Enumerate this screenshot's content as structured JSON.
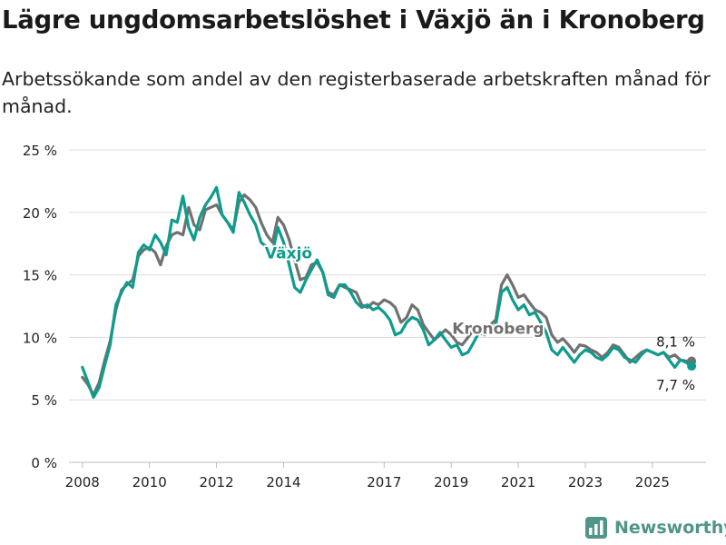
{
  "title": "Lägre ungdomsarbetslöshet i Växjö än i Kronoberg",
  "subtitle": "Arbetssökande som andel av den registerbaserade arbetskraften månad för månad.",
  "brand": "Newsworthy",
  "colors": {
    "vaxjo": "#0d9c8d",
    "kronoberg": "#717171",
    "grid": "#dcdcdc",
    "brand": "#4f9588"
  },
  "chart_data": {
    "type": "line",
    "title": "Lägre ungdomsarbetslöshet i Växjö än i Kronoberg",
    "xlabel": "",
    "ylabel": "",
    "xlim": [
      2007.6,
      2026.6
    ],
    "ylim": [
      0,
      25
    ],
    "y_ticks": [
      0,
      5,
      10,
      15,
      20,
      25
    ],
    "y_tick_labels": [
      "0 %",
      "5 %",
      "10 %",
      "15 %",
      "20 %",
      "25 %"
    ],
    "x_ticks": [
      2008,
      2010,
      2012,
      2014,
      2017,
      2019,
      2021,
      2023,
      2025
    ],
    "x_tick_labels": [
      "2008",
      "2010",
      "2012",
      "2014",
      "2017",
      "2019",
      "2021",
      "2023",
      "2025"
    ],
    "grid": true,
    "series": [
      {
        "name": "Kronoberg",
        "color": "#717171",
        "label_year": 2020.4,
        "label_value": 10.3,
        "end_label": "8,1 %",
        "x": [
          2008.0,
          2008.17,
          2008.33,
          2008.5,
          2008.67,
          2008.83,
          2009.0,
          2009.17,
          2009.33,
          2009.5,
          2009.67,
          2009.83,
          2010.0,
          2010.17,
          2010.33,
          2010.5,
          2010.67,
          2010.83,
          2011.0,
          2011.17,
          2011.33,
          2011.5,
          2011.67,
          2011.83,
          2012.0,
          2012.17,
          2012.33,
          2012.5,
          2012.67,
          2012.83,
          2013.0,
          2013.17,
          2013.33,
          2013.5,
          2013.67,
          2013.83,
          2014.0,
          2014.17,
          2014.33,
          2014.5,
          2014.67,
          2014.83,
          2015.0,
          2015.17,
          2015.33,
          2015.5,
          2015.67,
          2015.83,
          2016.0,
          2016.17,
          2016.33,
          2016.5,
          2016.67,
          2016.83,
          2017.0,
          2017.17,
          2017.33,
          2017.5,
          2017.67,
          2017.83,
          2018.0,
          2018.17,
          2018.33,
          2018.5,
          2018.67,
          2018.83,
          2019.0,
          2019.17,
          2019.33,
          2019.5,
          2019.67,
          2019.83,
          2020.0,
          2020.17,
          2020.33,
          2020.5,
          2020.67,
          2020.83,
          2021.0,
          2021.17,
          2021.33,
          2021.5,
          2021.67,
          2021.83,
          2022.0,
          2022.17,
          2022.33,
          2022.5,
          2022.67,
          2022.83,
          2023.0,
          2023.17,
          2023.33,
          2023.5,
          2023.67,
          2023.83,
          2024.0,
          2024.17,
          2024.33,
          2024.5,
          2024.67,
          2024.83,
          2025.0,
          2025.17,
          2025.33,
          2025.5,
          2025.67,
          2025.83,
          2026.0,
          2026.17
        ],
        "values": [
          6.8,
          6.2,
          5.4,
          6.4,
          8.2,
          9.7,
          12.2,
          13.8,
          14.2,
          14.6,
          16.5,
          17.0,
          17.2,
          16.8,
          15.8,
          17.3,
          18.2,
          18.4,
          18.2,
          20.4,
          19.0,
          18.6,
          20.2,
          20.4,
          20.6,
          19.8,
          19.2,
          18.6,
          20.8,
          21.4,
          21.0,
          20.4,
          19.2,
          18.2,
          17.6,
          19.6,
          19.0,
          17.8,
          16.2,
          14.6,
          14.8,
          15.8,
          16.0,
          15.2,
          13.6,
          13.4,
          14.2,
          14.0,
          13.8,
          13.6,
          12.6,
          12.4,
          12.8,
          12.6,
          13.0,
          12.8,
          12.4,
          11.2,
          11.6,
          12.6,
          12.2,
          11.0,
          10.4,
          9.8,
          10.2,
          10.6,
          10.2,
          9.6,
          9.4,
          10.0,
          10.6,
          10.4,
          10.2,
          11.0,
          11.4,
          14.2,
          15.0,
          14.2,
          13.2,
          13.4,
          12.8,
          12.2,
          12.0,
          11.6,
          10.2,
          9.6,
          9.9,
          9.4,
          8.8,
          9.4,
          9.3,
          9.0,
          8.8,
          8.4,
          8.8,
          9.4,
          9.2,
          8.6,
          8.0,
          8.4,
          8.8,
          9.0,
          8.8,
          8.6,
          8.8,
          8.4,
          8.6,
          8.2,
          8.1,
          8.1
        ]
      },
      {
        "name": "Växjö",
        "color": "#0d9c8d",
        "label_year": 2014.15,
        "label_value": 16.3,
        "end_label": "7,7 %",
        "x": [
          2008.0,
          2008.17,
          2008.33,
          2008.5,
          2008.67,
          2008.83,
          2009.0,
          2009.17,
          2009.33,
          2009.5,
          2009.67,
          2009.83,
          2010.0,
          2010.17,
          2010.33,
          2010.5,
          2010.67,
          2010.83,
          2011.0,
          2011.17,
          2011.33,
          2011.5,
          2011.67,
          2011.83,
          2012.0,
          2012.17,
          2012.33,
          2012.5,
          2012.67,
          2012.83,
          2013.0,
          2013.17,
          2013.33,
          2013.5,
          2013.67,
          2013.83,
          2014.0,
          2014.17,
          2014.33,
          2014.5,
          2014.67,
          2014.83,
          2015.0,
          2015.17,
          2015.33,
          2015.5,
          2015.67,
          2015.83,
          2016.0,
          2016.17,
          2016.33,
          2016.5,
          2016.67,
          2016.83,
          2017.0,
          2017.17,
          2017.33,
          2017.5,
          2017.67,
          2017.83,
          2018.0,
          2018.17,
          2018.33,
          2018.5,
          2018.67,
          2018.83,
          2019.0,
          2019.17,
          2019.33,
          2019.5,
          2019.67,
          2019.83,
          2020.0,
          2020.17,
          2020.33,
          2020.5,
          2020.67,
          2020.83,
          2021.0,
          2021.17,
          2021.33,
          2021.5,
          2021.67,
          2021.83,
          2022.0,
          2022.17,
          2022.33,
          2022.5,
          2022.67,
          2022.83,
          2023.0,
          2023.17,
          2023.33,
          2023.5,
          2023.67,
          2023.83,
          2024.0,
          2024.17,
          2024.33,
          2024.5,
          2024.67,
          2024.83,
          2025.0,
          2025.17,
          2025.33,
          2025.5,
          2025.67,
          2025.83,
          2026.0,
          2026.17
        ],
        "values": [
          7.6,
          6.4,
          5.2,
          6.0,
          7.8,
          9.4,
          12.6,
          13.6,
          14.4,
          14.0,
          16.8,
          17.4,
          17.0,
          18.2,
          17.6,
          16.6,
          19.4,
          19.2,
          21.3,
          18.8,
          17.8,
          19.6,
          20.6,
          21.2,
          22.0,
          19.8,
          19.2,
          18.4,
          21.6,
          20.8,
          19.8,
          19.0,
          17.6,
          17.2,
          16.8,
          18.8,
          17.6,
          15.8,
          14.0,
          13.6,
          14.6,
          15.4,
          16.2,
          15.2,
          13.4,
          13.2,
          14.2,
          14.2,
          13.6,
          12.8,
          12.4,
          12.6,
          12.2,
          12.4,
          12.0,
          11.4,
          10.2,
          10.4,
          11.2,
          11.6,
          11.4,
          10.6,
          9.4,
          9.8,
          10.4,
          9.8,
          9.2,
          9.4,
          8.6,
          8.8,
          9.6,
          10.4,
          10.2,
          10.6,
          11.0,
          13.6,
          14.0,
          13.0,
          12.2,
          12.6,
          11.8,
          12.0,
          11.2,
          10.4,
          9.0,
          8.6,
          9.2,
          8.6,
          8.0,
          8.6,
          9.0,
          8.8,
          8.4,
          8.2,
          8.6,
          9.2,
          9.0,
          8.4,
          8.2,
          8.0,
          8.6,
          9.0,
          8.8,
          8.6,
          8.8,
          8.2,
          7.6,
          8.2,
          8.0,
          7.7
        ]
      }
    ]
  }
}
